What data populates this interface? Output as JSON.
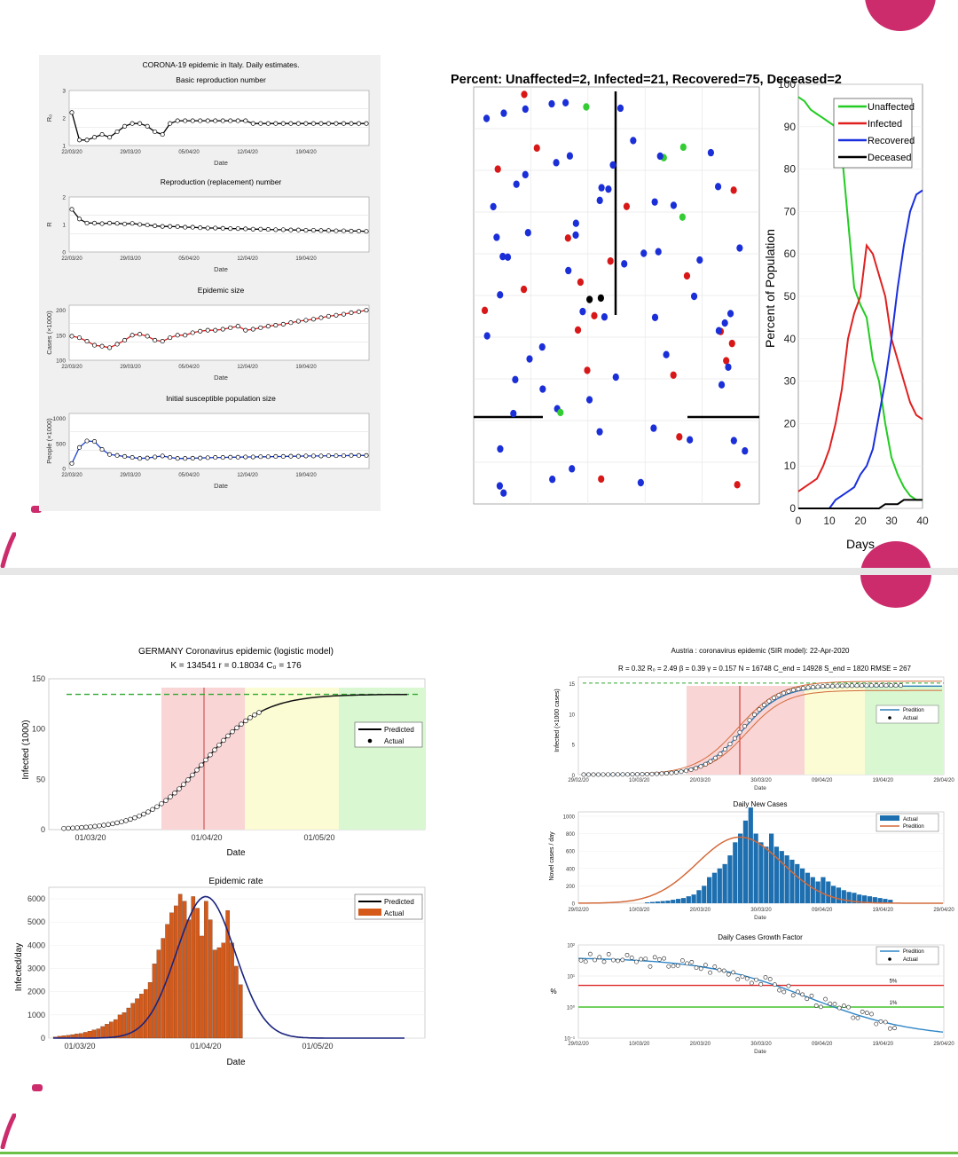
{
  "colors": {
    "accent": "#cc2c6c",
    "divider": "#e6e6e6",
    "bottom_rule": "#6cc04a"
  },
  "italy": {
    "title": "CORONA-19 epidemic in Italy. Daily estimates.",
    "date_ticks": [
      "22/03/20",
      "29/03/20",
      "05/04/20",
      "12/04/20",
      "19/04/20"
    ],
    "xlabel": "Date",
    "panels": [
      {
        "title": "Basic reproduction number",
        "ylabel": "R₀",
        "yticks": [
          "1",
          "2",
          "3"
        ],
        "ylim": [
          1,
          3
        ],
        "color": "#000000",
        "values": [
          2.2,
          1.2,
          1.2,
          1.3,
          1.4,
          1.3,
          1.5,
          1.7,
          1.8,
          1.8,
          1.7,
          1.5,
          1.4,
          1.8,
          1.9,
          1.9,
          1.9,
          1.9,
          1.9,
          1.9,
          1.9,
          1.9,
          1.9,
          1.9,
          1.8,
          1.8,
          1.8,
          1.8,
          1.8,
          1.8,
          1.8,
          1.8,
          1.8,
          1.8,
          1.8,
          1.8,
          1.8,
          1.8,
          1.8,
          1.8
        ]
      },
      {
        "title": "Reproduction (replacement) number",
        "ylabel": "R",
        "yticks": [
          "0",
          "1",
          "2"
        ],
        "ylim": [
          0,
          2
        ],
        "color": "#000000",
        "values": [
          1.55,
          1.2,
          1.05,
          1.05,
          1.03,
          1.05,
          1.04,
          1.02,
          1.04,
          1.0,
          0.98,
          0.95,
          0.93,
          0.93,
          0.92,
          0.9,
          0.9,
          0.88,
          0.87,
          0.87,
          0.86,
          0.85,
          0.85,
          0.84,
          0.83,
          0.83,
          0.82,
          0.81,
          0.81,
          0.8,
          0.8,
          0.79,
          0.79,
          0.78,
          0.78,
          0.77,
          0.77,
          0.76,
          0.76,
          0.75
        ]
      },
      {
        "title": "Epidemic size",
        "ylabel": "Cases (×1000)",
        "yticks": [
          "100",
          "150",
          "200"
        ],
        "ylim": [
          100,
          210
        ],
        "color": "#e02020",
        "values": [
          148,
          145,
          138,
          130,
          128,
          125,
          132,
          140,
          150,
          152,
          148,
          140,
          138,
          145,
          150,
          150,
          155,
          158,
          160,
          160,
          162,
          165,
          168,
          160,
          162,
          165,
          168,
          170,
          172,
          175,
          178,
          180,
          182,
          185,
          188,
          190,
          192,
          195,
          197,
          200
        ]
      },
      {
        "title": "Initial susceptible population size",
        "ylabel": "People (×1000)",
        "yticks": [
          "0",
          "500",
          "1000"
        ],
        "ylim": [
          0,
          1100
        ],
        "color": "#1a3fcf",
        "values": [
          100,
          420,
          550,
          540,
          380,
          280,
          260,
          240,
          220,
          200,
          210,
          230,
          250,
          220,
          200,
          200,
          205,
          210,
          215,
          220,
          220,
          225,
          225,
          230,
          230,
          235,
          235,
          240,
          240,
          245,
          245,
          250,
          250,
          250,
          255,
          255,
          255,
          260,
          260,
          260
        ]
      }
    ]
  },
  "sim": {
    "title": "Percent: Unaffected=2, Infected=21, Recovered=75, Deceased=2",
    "ylabel": "Percent of Population",
    "xlabel": "Days",
    "xticks": [
      "0",
      "10",
      "20",
      "30",
      "40"
    ],
    "yticks": [
      "0",
      "10",
      "20",
      "30",
      "40",
      "50",
      "60",
      "70",
      "80",
      "90",
      "100"
    ],
    "legend": [
      "Unaffected",
      "Infected",
      "Recovered",
      "Deceased"
    ],
    "series_colors": [
      "#22cc22",
      "#e02020",
      "#1a2fdd",
      "#000000"
    ],
    "chart_data": {
      "type": "line",
      "x": [
        0,
        2,
        4,
        6,
        8,
        10,
        12,
        14,
        16,
        18,
        20,
        22,
        24,
        26,
        28,
        30,
        32,
        34,
        36,
        38,
        40
      ],
      "series": [
        {
          "name": "Unaffected",
          "values": [
            97,
            96,
            94,
            93,
            92,
            91,
            90,
            84,
            68,
            52,
            48,
            45,
            35,
            30,
            20,
            12,
            8,
            5,
            3,
            2,
            2
          ]
        },
        {
          "name": "Infected",
          "values": [
            4,
            5,
            6,
            7,
            10,
            14,
            20,
            28,
            40,
            46,
            50,
            62,
            60,
            55,
            50,
            40,
            35,
            30,
            25,
            22,
            21
          ]
        },
        {
          "name": "Recovered",
          "values": [
            0,
            0,
            0,
            0,
            0,
            0,
            2,
            3,
            4,
            5,
            8,
            10,
            14,
            22,
            30,
            40,
            52,
            62,
            70,
            74,
            75
          ]
        },
        {
          "name": "Deceased",
          "values": [
            0,
            0,
            0,
            0,
            0,
            0,
            0,
            0,
            0,
            0,
            0,
            0,
            0,
            0,
            1,
            1,
            1,
            2,
            2,
            2,
            2
          ]
        }
      ],
      "xlim": [
        0,
        40
      ],
      "ylim": [
        0,
        100
      ]
    }
  },
  "germany": {
    "title": "GERMANY Coronavirus epidemic (logistic model)",
    "subtitle": "K = 134541  r = 0.18034  C₀ = 176",
    "ylabel": "Infected (1000)",
    "yticks": [
      "0",
      "50",
      "100",
      "150"
    ],
    "date_ticks": [
      "01/03/20",
      "01/04/20",
      "01/05/20"
    ],
    "xlabel": "Date",
    "legend": [
      "Predicted",
      "Actual"
    ],
    "rate_title": "Epidemic rate",
    "rate_ylabel": "Infected/day",
    "rate_yticks": [
      "0",
      "1000",
      "2000",
      "3000",
      "4000",
      "5000",
      "6000"
    ],
    "chart_data": {
      "type": "line",
      "K": 134.541,
      "r": 0.18034,
      "ylim": [
        0,
        150
      ],
      "rate_values": [
        50,
        80,
        100,
        120,
        150,
        180,
        200,
        250,
        300,
        350,
        400,
        500,
        600,
        700,
        800,
        1000,
        1100,
        1300,
        1500,
        1700,
        1900,
        2100,
        2400,
        3200,
        3800,
        4300,
        4900,
        5400,
        5700,
        6200,
        5900,
        5100,
        6100,
        5600,
        4400,
        5900,
        5100,
        3800,
        3900,
        4100,
        5500,
        4100,
        3100,
        2300
      ]
    }
  },
  "austria": {
    "title": "Austria : coronavirus epidemic (SIR model): 22-Apr-2020",
    "params": "R = 0.32  R₀ = 2.49  β = 0.39  γ = 0.157  N = 16748  C_end = 14928  S_end = 1820  RMSE = 267",
    "date_ticks": [
      "29/02/20",
      "10/03/20",
      "20/03/20",
      "30/03/20",
      "09/04/20",
      "19/04/20",
      "29/04/20"
    ],
    "xlabel": "Date",
    "top_ylabel": "Infected (×1000 cases)",
    "top_yticks": [
      "0",
      "5",
      "10",
      "15"
    ],
    "legend_top": [
      "Predition",
      "Actual"
    ],
    "daily_title": "Daily New Cases",
    "daily_ylabel": "Novel cases / day",
    "daily_yticks": [
      "0",
      "200",
      "400",
      "600",
      "800",
      "1000"
    ],
    "legend_daily": [
      "Actual",
      "Predition"
    ],
    "growth_title": "Daily Cases Growth Factor",
    "growth_ylabel": "%",
    "growth_yticks": [
      "10⁻¹",
      "10⁰",
      "10¹",
      "10²"
    ],
    "legend_growth": [
      "Predition",
      "Actual"
    ],
    "pct_labels": [
      "5%",
      "1%"
    ],
    "daily_values": [
      10,
      15,
      20,
      25,
      30,
      40,
      50,
      60,
      80,
      100,
      150,
      200,
      300,
      350,
      400,
      450,
      550,
      700,
      800,
      950,
      1100,
      800,
      700,
      650,
      800,
      650,
      600,
      550,
      500,
      450,
      400,
      350,
      300,
      250,
      300,
      250,
      200,
      180,
      150,
      130,
      120,
      100,
      90,
      80,
      70,
      60,
      50,
      40
    ]
  }
}
